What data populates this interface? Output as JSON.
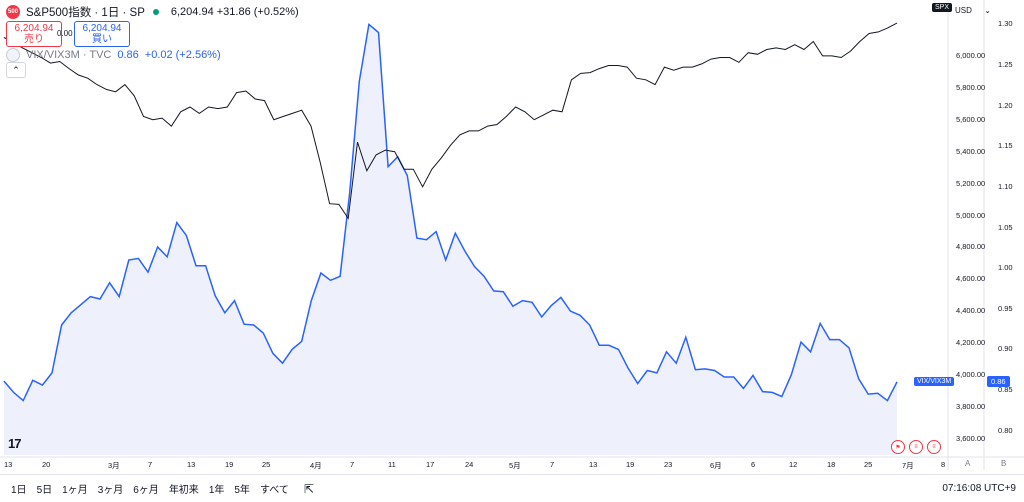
{
  "header": {
    "symbol_logo": "500",
    "title": "S&P500指数 · 1日 · SP",
    "ohlc": "6,204.94  +31.86 (+0.52%)"
  },
  "trade": {
    "sell_price": "6,204.94",
    "sell_label": "売り",
    "spread": "0.00",
    "buy_price": "6,204.94",
    "buy_label": "買い"
  },
  "collapse_icon": "chevron-up-icon",
  "compare": {
    "name": "VIX/VIX3M · TVC",
    "value": "0.86",
    "change": "+0.02 (+2.56%)"
  },
  "price_axis": {
    "currency": "USD",
    "symbol_tag": "SPX",
    "labels": [
      "6,000.00",
      "5,800.00",
      "5,600.00",
      "5,400.00",
      "5,200.00",
      "5,000.00",
      "4,800.00",
      "4,600.00",
      "4,400.00",
      "4,200.00",
      "4,000.00",
      "3,800.00",
      "3,600.00"
    ]
  },
  "right_axis": {
    "labels": [
      "1.30",
      "1.25",
      "1.20",
      "1.15",
      "1.10",
      "1.05",
      "1.00",
      "0.95",
      "0.90",
      "0.85",
      "0.80"
    ],
    "current": "0.86",
    "series_tag": "VIX/VIX3M"
  },
  "time_axis": {
    "labels": [
      "13",
      "20",
      "3月",
      "7",
      "13",
      "19",
      "25",
      "4月",
      "7",
      "11",
      "17",
      "24",
      "5月",
      "7",
      "13",
      "19",
      "23",
      "6月",
      "6",
      "12",
      "18",
      "25",
      "7月",
      "8"
    ],
    "corner_a": "A",
    "corner_b": "B"
  },
  "bottom_bar": {
    "ranges": [
      "1日",
      "5日",
      "1ヶ月",
      "3ヶ月",
      "6ヶ月",
      "年初来",
      "1年",
      "5年",
      "すべて"
    ],
    "clock": "07:16:08 UTC+9"
  },
  "colors": {
    "spx_line": "#131722",
    "vix_line": "#2962ff",
    "vix_fill": "#eef1fb",
    "sell": "#f23645",
    "buy": "#2962ff"
  },
  "chart_data": [
    {
      "type": "line",
      "name": "S&P500指数",
      "ylim": [
        3500,
        6350
      ],
      "values": [
        6115,
        6085,
        6050,
        6020,
        5990,
        5955,
        5965,
        5920,
        5880,
        5860,
        5820,
        5790,
        5775,
        5820,
        5750,
        5620,
        5600,
        5610,
        5560,
        5650,
        5680,
        5640,
        5680,
        5670,
        5680,
        5770,
        5780,
        5730,
        5720,
        5600,
        5620,
        5640,
        5660,
        5560,
        5330,
        5074,
        5070,
        4982,
        5460,
        5280,
        5380,
        5410,
        5400,
        5290,
        5290,
        5180,
        5290,
        5360,
        5440,
        5505,
        5530,
        5530,
        5560,
        5570,
        5620,
        5680,
        5650,
        5600,
        5630,
        5660,
        5650,
        5850,
        5890,
        5895,
        5920,
        5940,
        5940,
        5930,
        5860,
        5850,
        5820,
        5930,
        5910,
        5930,
        5930,
        5950,
        5980,
        5990,
        5990,
        5960,
        6020,
        6010,
        6040,
        6050,
        6040,
        6070,
        6040,
        6090,
        6000,
        6000,
        5990,
        6030,
        6090,
        6140,
        6150,
        6175,
        6205
      ]
    },
    {
      "type": "area",
      "name": "VIX/VIX3M",
      "ylim": [
        0.77,
        1.33
      ],
      "values": [
        0.861,
        0.847,
        0.837,
        0.862,
        0.856,
        0.871,
        0.93,
        0.945,
        0.955,
        0.965,
        0.962,
        0.982,
        0.965,
        1.01,
        1.012,
        0.995,
        1.026,
        1.014,
        1.056,
        1.04,
        1.003,
        1.003,
        0.966,
        0.945,
        0.96,
        0.931,
        0.93,
        0.92,
        0.895,
        0.883,
        0.9,
        0.91,
        0.96,
        0.994,
        0.985,
        0.99,
        1.093,
        1.23,
        1.3,
        1.29,
        1.125,
        1.137,
        1.114,
        1.037,
        1.035,
        1.045,
        1.01,
        1.043,
        1.021,
        1.002,
        0.99,
        0.972,
        0.971,
        0.953,
        0.96,
        0.958,
        0.94,
        0.954,
        0.964,
        0.947,
        0.942,
        0.93,
        0.905,
        0.905,
        0.9,
        0.877,
        0.858,
        0.874,
        0.871,
        0.897,
        0.883,
        0.915,
        0.875,
        0.876,
        0.874,
        0.866,
        0.866,
        0.852,
        0.868,
        0.848,
        0.847,
        0.842,
        0.869,
        0.909,
        0.897,
        0.932,
        0.912,
        0.912,
        0.902,
        0.864,
        0.845,
        0.846,
        0.837,
        0.86
      ]
    }
  ]
}
